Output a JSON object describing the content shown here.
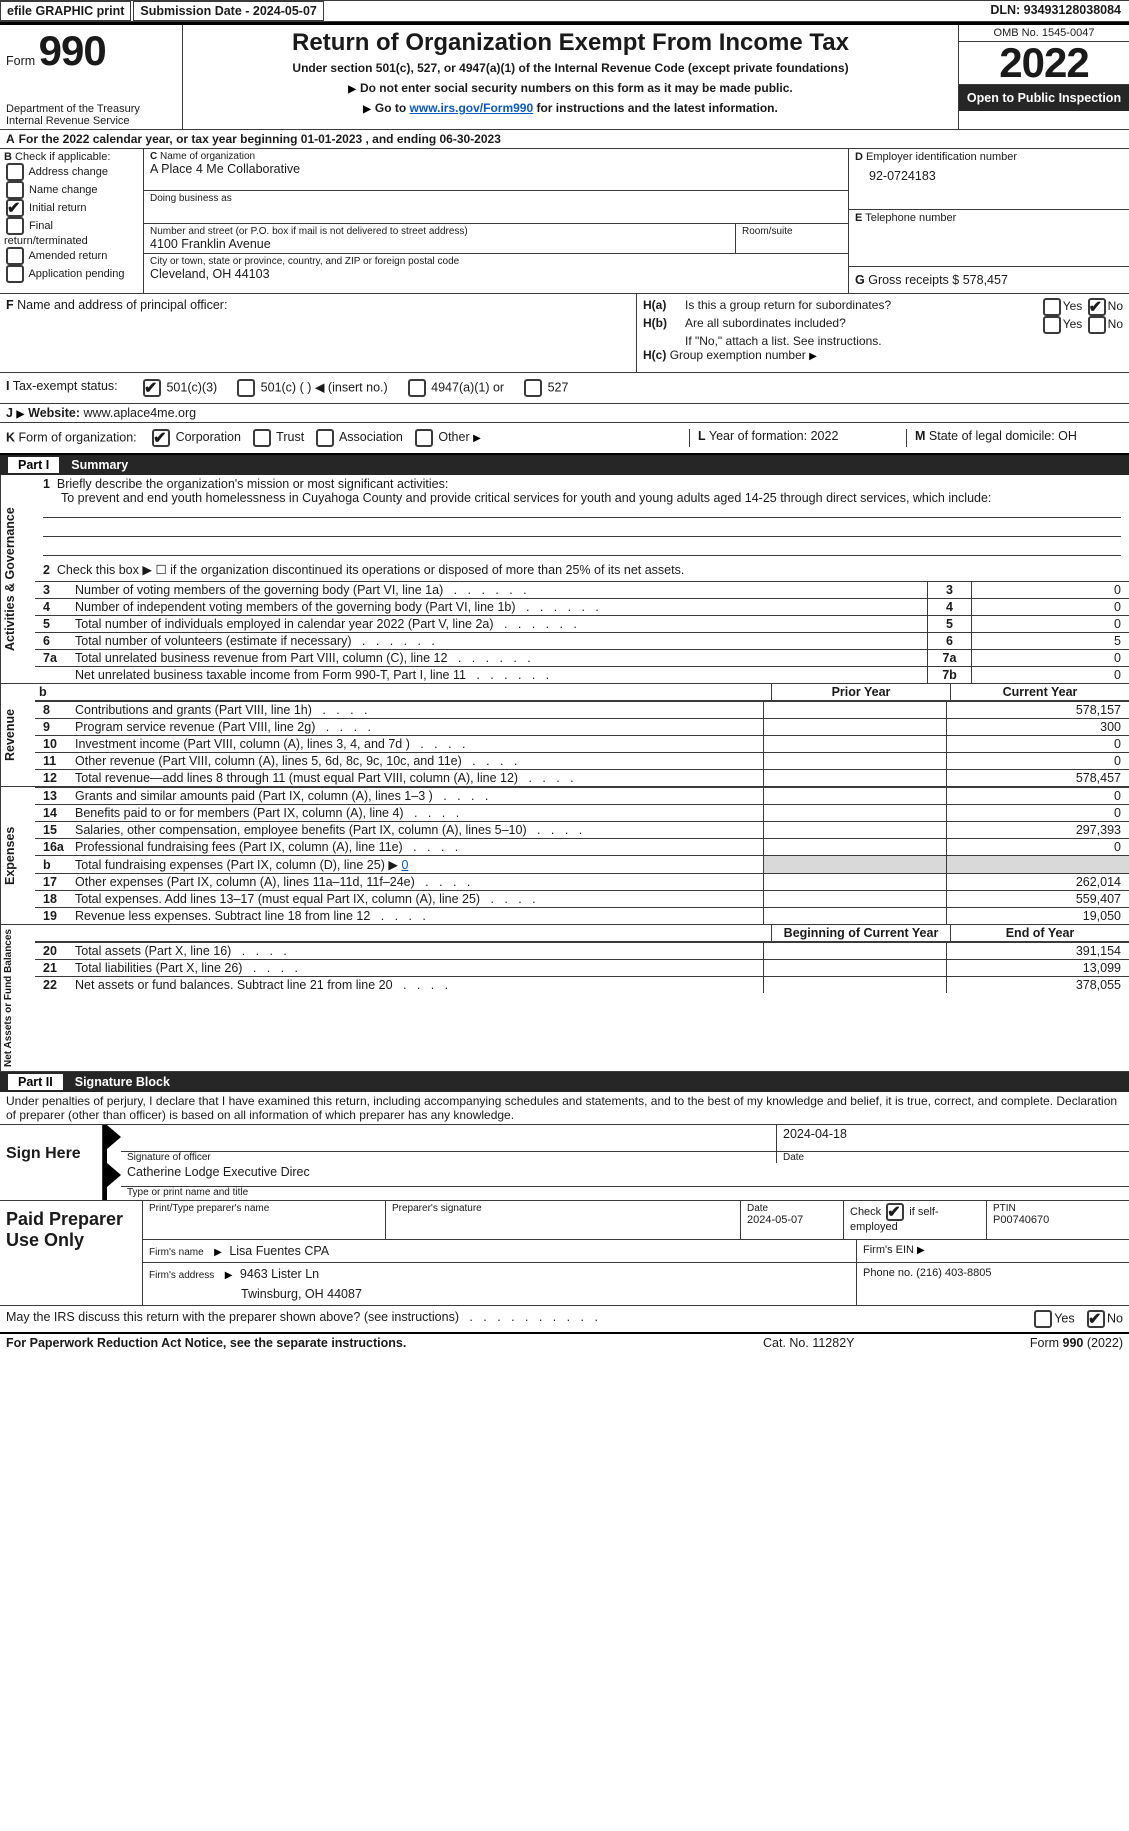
{
  "topbar": {
    "efile": "efile GRAPHIC print",
    "subdate_label": "Submission Date - ",
    "subdate": "2024-05-07",
    "dln_label": "DLN: ",
    "dln": "93493128038084"
  },
  "header": {
    "form_label": "Form",
    "form_num": "990",
    "dept": "Department of the Treasury\nInternal Revenue Service",
    "title": "Return of Organization Exempt From Income Tax",
    "subtitle": "Under section 501(c), 527, or 4947(a)(1) of the Internal Revenue Code (except private foundations)",
    "warn1": "Do not enter social security numbers on this form as it may be made public.",
    "warn2_pre": "Go to ",
    "warn2_link": "www.irs.gov/Form990",
    "warn2_post": " for instructions and the latest information.",
    "omb_label": "OMB No. 1545-0047",
    "year": "2022",
    "inspection": "Open to Public Inspection"
  },
  "A": {
    "line": "For the 2022 calendar year, or tax year beginning 01-01-2023    , and ending 06-30-2023",
    "prefix": "A"
  },
  "B": {
    "label": "Check if applicable:",
    "opts": [
      "Address change",
      "Name change",
      "Initial return",
      "Final return/terminated",
      "Amended return",
      "Application pending"
    ],
    "checked": [
      false,
      false,
      true,
      false,
      false,
      false
    ]
  },
  "C": {
    "name_label": "Name of organization",
    "name": "A Place 4 Me Collaborative",
    "dba_label": "Doing business as",
    "street_label": "Number and street (or P.O. box if mail is not delivered to street address)",
    "room_label": "Room/suite",
    "street": "4100 Franklin Avenue",
    "city_label": "City or town, state or province, country, and ZIP or foreign postal code",
    "city": "Cleveland, OH  44103"
  },
  "D": {
    "label": "Employer identification number",
    "val": "92-0724183"
  },
  "E": {
    "label": "Telephone number",
    "val": ""
  },
  "G": {
    "label": "Gross receipts $",
    "val": "578,457"
  },
  "F": {
    "label": "Name and address of principal officer:"
  },
  "H": {
    "a": "Is this a group return for subordinates?",
    "b": "Are all subordinates included?",
    "b_note": "If \"No,\" attach a list. See instructions.",
    "c": "Group exemption number",
    "ha_no": true
  },
  "I": {
    "label": "Tax-exempt status:",
    "opts": [
      "501(c)(3)",
      "501(c) (  ) ◀ (insert no.)",
      "4947(a)(1) or",
      "527"
    ],
    "checked": [
      true,
      false,
      false,
      false
    ]
  },
  "J": {
    "label": "Website:",
    "val": "www.aplace4me.org"
  },
  "K": {
    "label": "Form of organization:",
    "opts": [
      "Corporation",
      "Trust",
      "Association",
      "Other"
    ],
    "checked": [
      true,
      false,
      false,
      false
    ]
  },
  "L": {
    "label": "Year of formation:",
    "val": "2022"
  },
  "M": {
    "label": "State of legal domicile:",
    "val": "OH"
  },
  "part1": {
    "title": "Part I",
    "heading": "Summary",
    "line1_label": "Briefly describe the organization's mission or most significant activities:",
    "line1_text": "To prevent and end youth homelessness in Cuyahoga County and provide critical services for youth and young adults aged 14-25 through direct services, which include:",
    "line2": "Check this box ▶ ☐  if the organization discontinued its operations or disposed of more than 25% of its net assets.",
    "rows_a": [
      {
        "n": "3",
        "d": "Number of voting members of the governing body (Part VI, line 1a)",
        "box": "3",
        "v": "0"
      },
      {
        "n": "4",
        "d": "Number of independent voting members of the governing body (Part VI, line 1b)",
        "box": "4",
        "v": "0"
      },
      {
        "n": "5",
        "d": "Total number of individuals employed in calendar year 2022 (Part V, line 2a)",
        "box": "5",
        "v": "0"
      },
      {
        "n": "6",
        "d": "Total number of volunteers (estimate if necessary)",
        "box": "6",
        "v": "5"
      },
      {
        "n": "7a",
        "d": "Total unrelated business revenue from Part VIII, column (C), line 12",
        "box": "7a",
        "v": "0"
      },
      {
        "n": "",
        "d": "Net unrelated business taxable income from Form 990-T, Part I, line 11",
        "box": "7b",
        "v": "0"
      }
    ],
    "hdr_prior": "Prior Year",
    "hdr_current": "Current Year",
    "revenue": [
      {
        "n": "8",
        "d": "Contributions and grants (Part VIII, line 1h)",
        "p": "",
        "c": "578,157"
      },
      {
        "n": "9",
        "d": "Program service revenue (Part VIII, line 2g)",
        "p": "",
        "c": "300"
      },
      {
        "n": "10",
        "d": "Investment income (Part VIII, column (A), lines 3, 4, and 7d )",
        "p": "",
        "c": "0"
      },
      {
        "n": "11",
        "d": "Other revenue (Part VIII, column (A), lines 5, 6d, 8c, 9c, 10c, and 11e)",
        "p": "",
        "c": "0"
      },
      {
        "n": "12",
        "d": "Total revenue—add lines 8 through 11 (must equal Part VIII, column (A), line 12)",
        "p": "",
        "c": "578,457"
      }
    ],
    "expenses": [
      {
        "n": "13",
        "d": "Grants and similar amounts paid (Part IX, column (A), lines 1–3 )",
        "p": "",
        "c": "0"
      },
      {
        "n": "14",
        "d": "Benefits paid to or for members (Part IX, column (A), line 4)",
        "p": "",
        "c": "0"
      },
      {
        "n": "15",
        "d": "Salaries, other compensation, employee benefits (Part IX, column (A), lines 5–10)",
        "p": "",
        "c": "297,393"
      },
      {
        "n": "16a",
        "d": "Professional fundraising fees (Part IX, column (A), line 11e)",
        "p": "",
        "c": "0"
      },
      {
        "n": "b",
        "d_html": "Total fundraising expenses (Part IX, column (D), line 25) ▶",
        "d_val": "0",
        "shade": true
      },
      {
        "n": "17",
        "d": "Other expenses (Part IX, column (A), lines 11a–11d, 11f–24e)",
        "p": "",
        "c": "262,014"
      },
      {
        "n": "18",
        "d": "Total expenses. Add lines 13–17 (must equal Part IX, column (A), line 25)",
        "p": "",
        "c": "559,407"
      },
      {
        "n": "19",
        "d": "Revenue less expenses. Subtract line 18 from line 12",
        "p": "",
        "c": "19,050"
      }
    ],
    "hdr_begin": "Beginning of Current Year",
    "hdr_end": "End of Year",
    "netassets": [
      {
        "n": "20",
        "d": "Total assets (Part X, line 16)",
        "p": "",
        "c": "391,154"
      },
      {
        "n": "21",
        "d": "Total liabilities (Part X, line 26)",
        "p": "",
        "c": "13,099"
      },
      {
        "n": "22",
        "d": "Net assets or fund balances. Subtract line 21 from line 20",
        "p": "",
        "c": "378,055"
      }
    ],
    "v_act": "Activities & Governance",
    "v_rev": "Revenue",
    "v_exp": "Expenses",
    "v_net": "Net Assets or Fund Balances"
  },
  "part2": {
    "title": "Part II",
    "heading": "Signature Block",
    "penalty": "Under penalties of perjury, I declare that I have examined this return, including accompanying schedules and statements, and to the best of my knowledge and belief, it is true, correct, and complete. Declaration of preparer (other than officer) is based on all information of which preparer has any knowledge.",
    "sign_here": "Sign Here",
    "sig_officer": "Signature of officer",
    "sig_date": "2024-04-18",
    "date_label": "Date",
    "officer_name": "Catherine Lodge  Executive Direc",
    "officer_type": "Type or print name and title",
    "paid": "Paid Preparer Use Only",
    "prep_name_label": "Print/Type preparer's name",
    "prep_sig_label": "Preparer's signature",
    "prep_date_label": "Date",
    "prep_date": "2024-05-07",
    "check_self": "Check ☑ if self-employed",
    "ptin_label": "PTIN",
    "ptin": "P00740670",
    "firm_name_label": "Firm's name",
    "firm_name": "Lisa Fuentes CPA",
    "firm_ein_label": "Firm's EIN",
    "firm_addr_label": "Firm's address",
    "firm_addr": "9463 Lister Ln",
    "firm_addr2": "Twinsburg, OH  44087",
    "phone_label": "Phone no.",
    "phone": "(216) 403-8805",
    "discuss": "May the IRS discuss this return with the preparer shown above? (see instructions)",
    "discuss_no": true
  },
  "footer": {
    "fpra": "For Paperwork Reduction Act Notice, see the separate instructions.",
    "cat": "Cat. No. 11282Y",
    "form": "Form 990 (2022)"
  }
}
